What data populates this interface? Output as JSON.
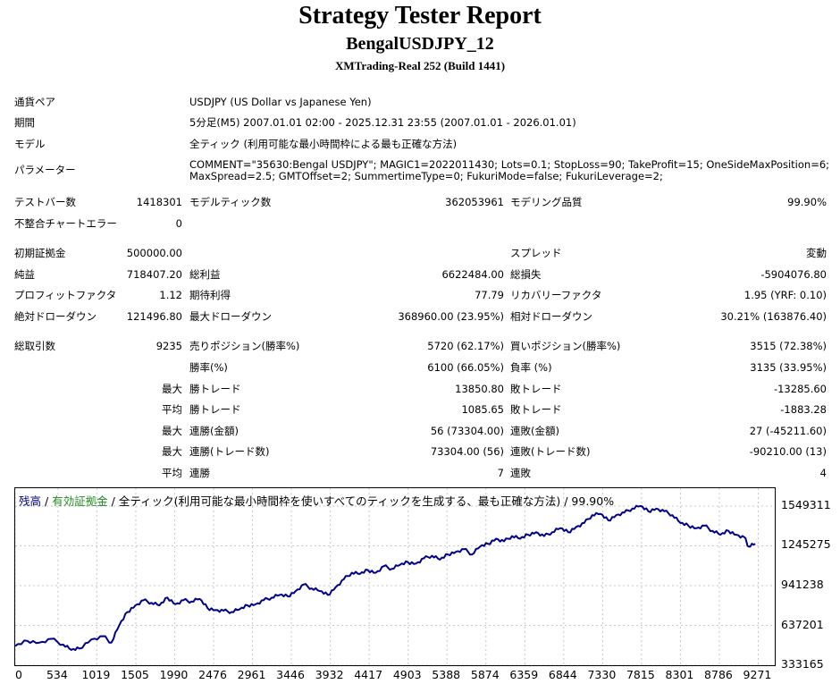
{
  "report": {
    "title": "Strategy Tester Report",
    "ea_name": "BengalUSDJPY_12",
    "server": "XMTrading-Real 252 (Build 1441)"
  },
  "settings": {
    "symbol_label": "通貨ペア",
    "symbol_value": "USDJPY (US Dollar vs Japanese Yen)",
    "period_label": "期間",
    "period_value": "5分足(M5) 2007.01.01 02:00 - 2025.12.31 23:55 (2007.01.01 - 2026.01.01)",
    "model_label": "モデル",
    "model_value": "全ティック (利用可能な最小時間枠による最も正確な方法)",
    "params_label": "パラメーター",
    "params_line1": "COMMENT=\"35630:Bengal USDJPY\"; MAGIC1=2022011430; Lots=0.1; StopLoss=90; TakeProfit=15; OneSideMaxPosition=6;",
    "params_line2": "MaxSpread=2.5; GMTOffset=2; SummertimeType=0; FukuriMode=false; FukuriLeverage=2;"
  },
  "test": {
    "bars_label": "テストバー数",
    "bars_value": "1418301",
    "ticks_label": "モデルティック数",
    "ticks_value": "362053961",
    "quality_label": "モデリング品質",
    "quality_value": "99.90%",
    "mismatch_label": "不整合チャートエラー",
    "mismatch_value": "0"
  },
  "results": {
    "deposit_label": "初期証拠金",
    "deposit_value": "500000.00",
    "spread_label": "スプレッド",
    "spread_value": "変動",
    "net_label": "純益",
    "net_value": "718407.20",
    "gross_profit_label": "総利益",
    "gross_profit_value": "6622484.00",
    "gross_loss_label": "総損失",
    "gross_loss_value": "-5904076.80",
    "pf_label": "プロフィットファクタ",
    "pf_value": "1.12",
    "expected_label": "期待利得",
    "expected_value": "77.79",
    "recovery_label": "リカバリーファクタ",
    "recovery_value": "1.95 (YRF: 0.10)",
    "abs_dd_label": "絶対ドローダウン",
    "abs_dd_value": "121496.80",
    "max_dd_label": "最大ドローダウン",
    "max_dd_value": "368960.00 (23.95%)",
    "rel_dd_label": "相対ドローダウン",
    "rel_dd_value": "30.21% (163876.40)"
  },
  "trades": {
    "total_label": "総取引数",
    "total_value": "9235",
    "short_label": "売りポジション(勝率%)",
    "short_value": "5720 (62.17%)",
    "long_label": "買いポジション(勝率%)",
    "long_value": "3515 (72.38%)",
    "win_rate_label": "勝率(%)",
    "win_rate_value": "6100 (66.05%)",
    "loss_rate_label": "負率 (%)",
    "loss_rate_value": "3135 (33.95%)",
    "max_prefix": "最大",
    "avg_prefix": "平均",
    "largest_win_label": "勝トレード",
    "largest_win_value": "13850.80",
    "largest_loss_label": "敗トレード",
    "largest_loss_value": "-13285.60",
    "avg_win_label": "勝トレード",
    "avg_win_value": "1085.65",
    "avg_loss_label": "敗トレード",
    "avg_loss_value": "-1883.28",
    "cons_wins_money_label": "連勝(金額)",
    "cons_wins_money_value": "56 (73304.00)",
    "cons_loss_money_label": "連敗(金額)",
    "cons_loss_money_value": "27 (-45211.60)",
    "cons_wins_trades_label": "連勝(トレード数)",
    "cons_wins_trades_value": "73304.00 (56)",
    "cons_loss_trades_label": "連敗(トレード数)",
    "cons_loss_trades_value": "-90210.00 (13)",
    "avg_cons_wins_label": "連勝",
    "avg_cons_wins_value": "7",
    "avg_cons_loss_label": "連敗",
    "avg_cons_loss_value": "4"
  },
  "chart_legend": {
    "balance": "残高",
    "sep1": " / ",
    "equity": "有効証拠金",
    "sep2": " / ",
    "model": "全ティック(利用可能な最小時間枠を使いすべてのティックを生成する、最も正確な方法) / 99.90%"
  },
  "chart_data": {
    "type": "line",
    "title": "",
    "xlabel": "",
    "ylabel": "",
    "x_ticks": [
      "0",
      "534",
      "1019",
      "1505",
      "1990",
      "2476",
      "2961",
      "3446",
      "3932",
      "4417",
      "4903",
      "5388",
      "5874",
      "6359",
      "6844",
      "7330",
      "7815",
      "8301",
      "8786",
      "9271"
    ],
    "y_ticks": [
      "1549311",
      "1245275",
      "941238",
      "637201",
      "333165"
    ],
    "xlim": [
      0,
      9500
    ],
    "ylim": [
      333165,
      1549311
    ],
    "grid": true,
    "colors": {
      "balance": "#00008b",
      "equity": "#228b22"
    },
    "series": [
      {
        "name": "残高",
        "x": [
          0,
          150,
          300,
          450,
          600,
          700,
          800,
          950,
          1100,
          1200,
          1300,
          1400,
          1500,
          1600,
          1700,
          1800,
          1900,
          2000,
          2100,
          2200,
          2300,
          2400,
          2500,
          2600,
          2700,
          2800,
          2900,
          3000,
          3100,
          3200,
          3300,
          3400,
          3500,
          3600,
          3700,
          3800,
          3900,
          4000,
          4100,
          4200,
          4300,
          4400,
          4500,
          4600,
          4700,
          4800,
          4900,
          5000,
          5100,
          5200,
          5300,
          5400,
          5500,
          5600,
          5700,
          5800,
          5900,
          6000,
          6100,
          6200,
          6300,
          6400,
          6500,
          6600,
          6700,
          6800,
          6900,
          7000,
          7100,
          7200,
          7300,
          7400,
          7500,
          7600,
          7700,
          7800,
          7900,
          8000,
          8100,
          8200,
          8300,
          8400,
          8500,
          8600,
          8700,
          8800,
          8900,
          9000,
          9100,
          9150,
          9235
        ],
        "values": [
          480000,
          520000,
          505000,
          535000,
          490000,
          450000,
          460000,
          530000,
          555000,
          505000,
          640000,
          740000,
          790000,
          830000,
          810000,
          790000,
          850000,
          800000,
          830000,
          820000,
          840000,
          770000,
          755000,
          750000,
          740000,
          760000,
          790000,
          800000,
          830000,
          850000,
          870000,
          860000,
          900000,
          950000,
          920000,
          900000,
          870000,
          930000,
          990000,
          1040000,
          1030000,
          1060000,
          1040000,
          1090000,
          1070000,
          1100000,
          1120000,
          1110000,
          1150000,
          1170000,
          1140000,
          1180000,
          1200000,
          1220000,
          1180000,
          1240000,
          1260000,
          1300000,
          1280000,
          1320000,
          1300000,
          1330000,
          1350000,
          1320000,
          1350000,
          1380000,
          1350000,
          1390000,
          1420000,
          1480000,
          1490000,
          1440000,
          1480000,
          1500000,
          1530000,
          1550000,
          1510000,
          1530000,
          1510000,
          1480000,
          1420000,
          1400000,
          1380000,
          1400000,
          1360000,
          1330000,
          1360000,
          1330000,
          1310000,
          1240000,
          1260000
        ]
      }
    ]
  }
}
